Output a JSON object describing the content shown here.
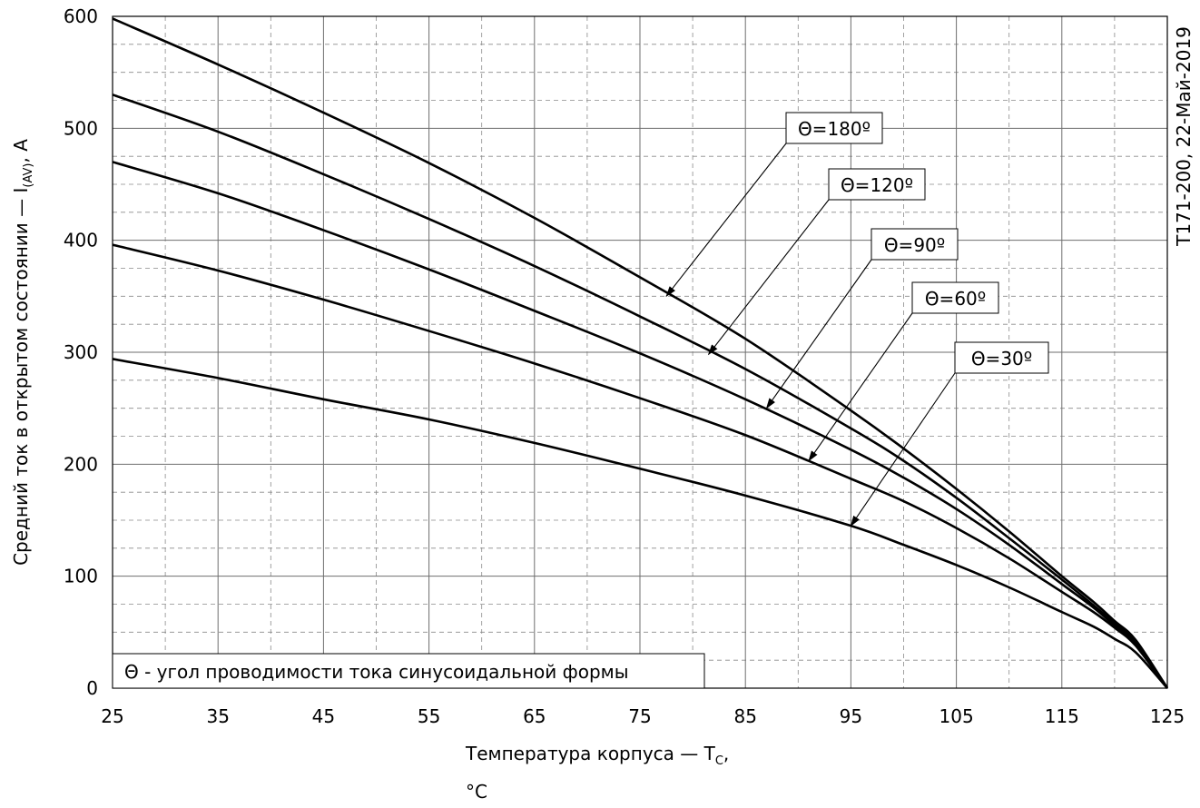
{
  "chart_data": {
    "type": "line",
    "xlabel": {
      "main": "Температура корпуса — T",
      "sub": "C",
      "suffix": ",",
      "unit": "°C"
    },
    "ylabel": {
      "main": "Средний ток в открытом состоянии — I",
      "sub": "(AV)",
      "suffix": ", A"
    },
    "xlim": [
      25,
      125
    ],
    "ylim": [
      0,
      600
    ],
    "x_ticks": [
      25,
      35,
      45,
      55,
      65,
      75,
      85,
      95,
      105,
      115,
      125
    ],
    "y_ticks": [
      0,
      100,
      200,
      300,
      400,
      500,
      600
    ],
    "x_minor_step": 5,
    "y_minor_step": 25,
    "grid": true,
    "legend_note": "Θ - угол проводимости тока синусоидальной формы",
    "side_text": "T171-200, 22-Май-2019",
    "series": [
      {
        "name": "Θ=180º",
        "x": [
          25,
          35,
          45,
          55,
          65,
          75,
          85,
          95,
          100,
          105,
          110,
          115,
          118,
          120,
          122,
          125
        ],
        "y": [
          598,
          557,
          514,
          469,
          420,
          367,
          312,
          248,
          214,
          178,
          140,
          100,
          77,
          60,
          43,
          0
        ]
      },
      {
        "name": "Θ=120º",
        "x": [
          25,
          35,
          45,
          55,
          65,
          75,
          85,
          95,
          100,
          105,
          110,
          115,
          118,
          120,
          122,
          125
        ],
        "y": [
          530,
          497,
          459,
          419,
          377,
          332,
          285,
          232,
          203,
          170,
          134,
          97,
          74,
          58,
          42,
          0
        ]
      },
      {
        "name": "Θ=90º",
        "x": [
          25,
          35,
          45,
          55,
          65,
          75,
          85,
          95,
          100,
          105,
          110,
          115,
          118,
          120,
          122,
          125
        ],
        "y": [
          470,
          442,
          409,
          374,
          337,
          299,
          258,
          213,
          188,
          160,
          128,
          93,
          72,
          56,
          40,
          0
        ]
      },
      {
        "name": "Θ=60º",
        "x": [
          25,
          35,
          45,
          55,
          65,
          75,
          85,
          95,
          100,
          105,
          110,
          115,
          118,
          120,
          122,
          125
        ],
        "y": [
          396,
          373,
          347,
          319,
          290,
          259,
          226,
          187,
          167,
          143,
          116,
          86,
          68,
          54,
          38,
          0
        ]
      },
      {
        "name": "Θ=30º",
        "x": [
          25,
          35,
          45,
          55,
          65,
          75,
          85,
          95,
          100,
          105,
          110,
          115,
          118,
          120,
          122,
          125
        ],
        "y": [
          294,
          277,
          258,
          240,
          219,
          196,
          172,
          145,
          128,
          110,
          90,
          68,
          55,
          44,
          32,
          0
        ]
      }
    ],
    "annotations": [
      {
        "label": "Θ=180º",
        "target_x": 77.5,
        "target_y": 350
      },
      {
        "label": "Θ=120º",
        "target_x": 81.5,
        "target_y": 298
      },
      {
        "label": "Θ=90º",
        "target_x": 87,
        "target_y": 250
      },
      {
        "label": "Θ=60º",
        "target_x": 91,
        "target_y": 203
      },
      {
        "label": "Θ=30º",
        "target_x": 95,
        "target_y": 145
      }
    ]
  }
}
